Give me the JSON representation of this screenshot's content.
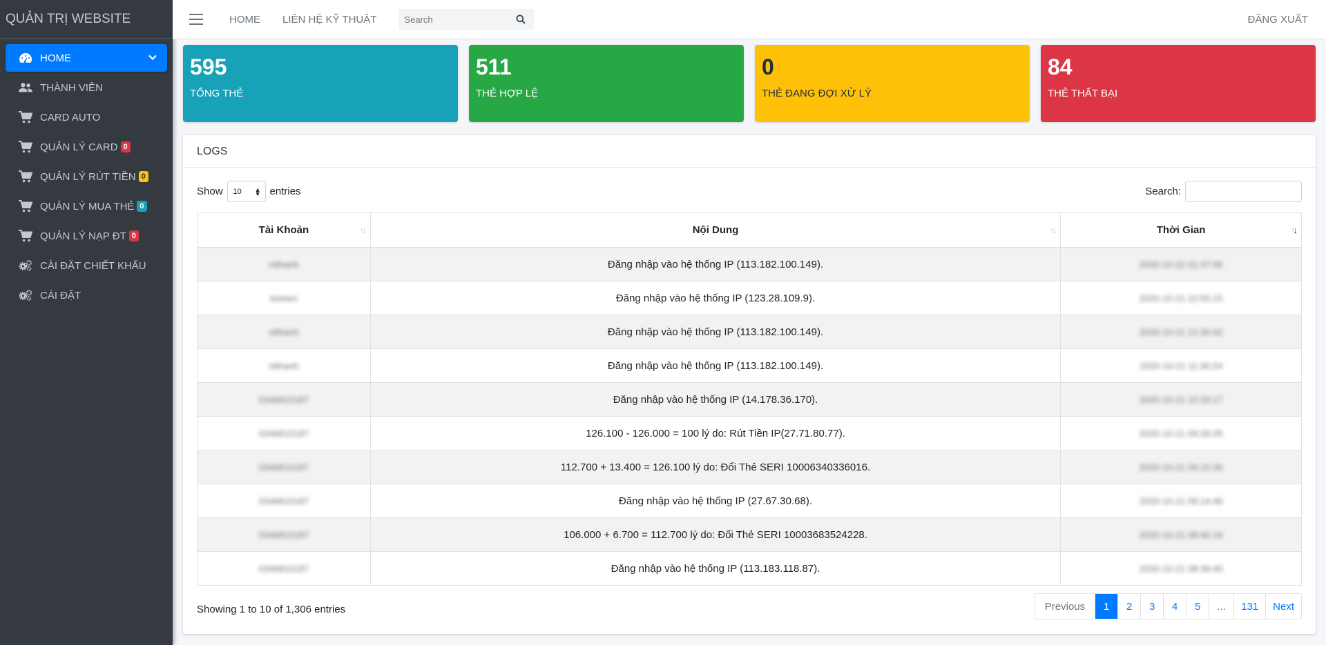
{
  "sidebar": {
    "brand": "QUẢN TRỊ WEBSITE",
    "items": [
      {
        "label": "HOME",
        "icon": "tachometer-icon"
      },
      {
        "label": "THÀNH VIÊN",
        "icon": "users-icon"
      },
      {
        "label": "CARD AUTO",
        "icon": "cart-icon"
      },
      {
        "label": "QUẢN LÝ CARD",
        "icon": "cart-icon",
        "badge": "0"
      },
      {
        "label": "QUẢN LÝ RÚT TIỀN",
        "icon": "cart-icon",
        "badge": "0"
      },
      {
        "label": "QUẢN LÝ MUA THẺ",
        "icon": "cart-icon",
        "badge": "0"
      },
      {
        "label": "QUẢN LÝ NẠP ĐT",
        "icon": "cart-icon",
        "badge": "0"
      },
      {
        "label": "CÀI ĐẶT CHIẾT KHẤU",
        "icon": "cogs-icon"
      },
      {
        "label": "CÀI ĐẶT",
        "icon": "cogs-icon"
      }
    ]
  },
  "topbar": {
    "home": "HOME",
    "contact": "LIÊN HỆ KỸ THUẬT",
    "search_placeholder": "Search",
    "logout": "ĐĂNG XUẤT"
  },
  "stats": [
    {
      "value": "595",
      "label": "TỔNG THẺ",
      "color": "#17a2b8"
    },
    {
      "value": "511",
      "label": "THẺ HỢP LỆ",
      "color": "#28a745"
    },
    {
      "value": "0",
      "label": "THẺ ĐANG ĐỢI XỬ LÝ",
      "color": "#ffc107"
    },
    {
      "value": "84",
      "label": "THẺ THẤT BẠI",
      "color": "#dc3545"
    }
  ],
  "logs": {
    "title": "LOGS",
    "show_label": "Show",
    "page_size": "10",
    "entries_label": "entries",
    "search_label": "Search:",
    "columns": [
      "Tài Khoản",
      "Nội Dung",
      "Thời Gian"
    ],
    "rows": [
      {
        "account": "ntthanh",
        "content": "Đăng nhập vào hệ thống IP (113.182.100.149).",
        "time": "2020-10-22 01:37:06"
      },
      {
        "account": "kietwcl",
        "content": "Đăng nhập vào hệ thống IP (123.28.109.9).",
        "time": "2020-10-21 22:55:15"
      },
      {
        "account": "ntthanh",
        "content": "Đăng nhập vào hệ thống IP (113.182.100.149).",
        "time": "2020-10-21 21:30:42"
      },
      {
        "account": "ntthanh",
        "content": "Đăng nhập vào hệ thống IP (113.182.100.149).",
        "time": "2020-10-21 11:30:24"
      },
      {
        "account": "0346810187",
        "content": "Đăng nhập vào hệ thống IP (14.178.36.170).",
        "time": "2020-10-21 10:33:17"
      },
      {
        "account": "0346810187",
        "content": "126.100 - 126.000 = 100 lý do: Rút Tiền IP(27.71.80.77).",
        "time": "2020-10-21 09:26:05"
      },
      {
        "account": "0346810187",
        "content": "112.700 + 13.400 = 126.100 lý do: Đổi Thẻ SERI 10006340336016.",
        "time": "2020-10-21 09:15:26"
      },
      {
        "account": "0346810187",
        "content": "Đăng nhập vào hệ thống IP (27.67.30.68).",
        "time": "2020-10-21 09:14:46"
      },
      {
        "account": "0346810187",
        "content": "106.000 + 6.700 = 112.700 lý do: Đổi Thẻ SERI 10003683524228.",
        "time": "2020-10-21 08:40:19"
      },
      {
        "account": "0346810187",
        "content": "Đăng nhập vào hệ thống IP (113.183.118.87).",
        "time": "2020-10-21 08:39:40"
      }
    ],
    "info": "Showing 1 to 10 of 1,306 entries",
    "pagination": [
      "Previous",
      "1",
      "2",
      "3",
      "4",
      "5",
      "…",
      "131",
      "Next"
    ]
  }
}
